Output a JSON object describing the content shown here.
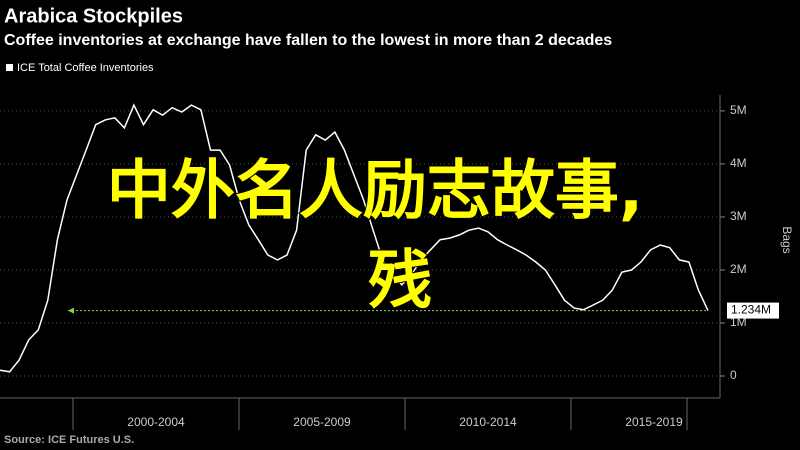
{
  "chart_data": {
    "type": "line",
    "title": "Arabica Stockpiles",
    "subtitle": "Coffee inventories at exchange have fallen to the lowest in more than 2 decades",
    "y_label": "Bags",
    "source": "Source: ICE Futures U.S.",
    "periods": [
      "2000-2004",
      "2005-2009",
      "2010-2014",
      "2015-2019"
    ],
    "series": [
      {
        "name": "ICE Total Coffee Inventories",
        "color": "#ffffff",
        "values": [
          110000,
          80000,
          300000,
          680000,
          870000,
          1430000,
          2570000,
          3320000,
          3790000,
          4260000,
          4740000,
          4830000,
          4870000,
          4680000,
          5110000,
          4740000,
          5020000,
          4920000,
          5060000,
          4980000,
          5110000,
          5020000,
          4260000,
          4260000,
          3980000,
          3320000,
          2850000,
          2570000,
          2280000,
          2190000,
          2280000,
          2750000,
          4260000,
          4550000,
          4450000,
          4600000,
          4260000,
          3790000,
          3320000,
          2750000,
          2190000,
          1910000,
          1720000,
          1910000,
          2190000,
          2380000,
          2570000,
          2600000,
          2660000,
          2750000,
          2790000,
          2720000,
          2570000,
          2470000,
          2380000,
          2280000,
          2150000,
          2000000,
          1720000,
          1430000,
          1280000,
          1250000,
          1340000,
          1430000,
          1620000,
          1960000,
          2000000,
          2150000,
          2380000,
          2470000,
          2420000,
          2190000,
          2150000,
          1620000,
          1234000
        ],
        "value_labels": [
          null,
          null,
          null,
          null,
          null,
          null,
          null,
          null,
          null,
          null,
          null,
          null,
          null,
          null,
          null,
          null,
          null,
          null,
          null,
          null,
          null,
          null,
          null,
          null,
          null,
          null,
          null,
          null,
          null,
          null,
          null,
          null,
          null,
          null,
          null,
          null,
          null,
          null,
          null,
          null,
          null,
          null,
          null,
          null,
          null,
          null,
          null,
          null,
          null,
          null,
          null,
          null,
          null,
          null,
          null,
          null,
          null,
          null,
          null,
          null,
          null,
          null,
          null,
          null,
          null,
          null,
          null,
          null,
          null,
          null,
          null,
          null,
          null,
          null,
          "1.234M"
        ]
      }
    ],
    "ylim": [
      -415000,
      5300000
    ],
    "yticks": [
      0,
      {
        "value": 1000000,
        "label": "1M"
      },
      {
        "value": 2000000,
        "label": "2M"
      },
      {
        "value": 3000000,
        "label": "3M"
      },
      {
        "value": 4000000,
        "label": "4M"
      },
      {
        "value": 5000000,
        "label": "5M"
      }
    ],
    "grid": true,
    "reference_line_color": "#8fd14f",
    "overlay_text": [
      "中外名人励志故事,",
      "残"
    ],
    "overlay_color": "#ffff00"
  }
}
